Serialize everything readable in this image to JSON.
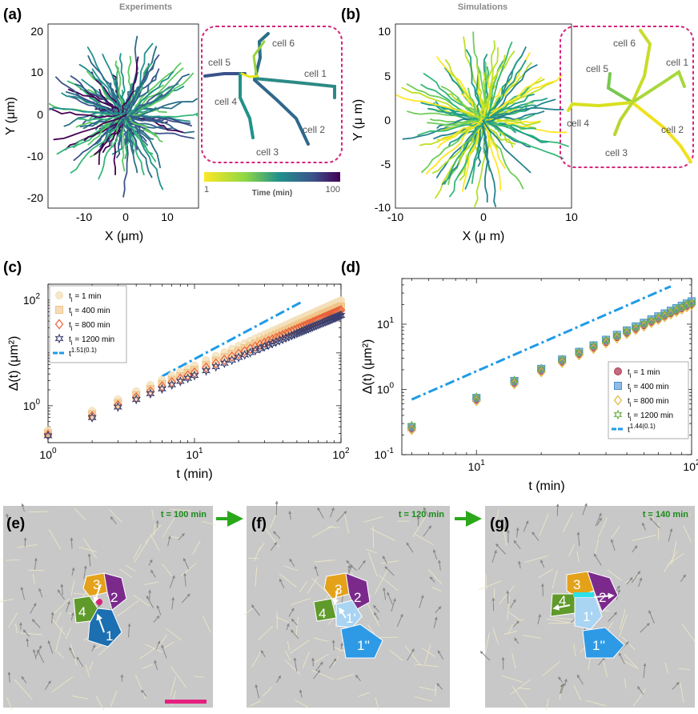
{
  "panels": {
    "a": {
      "label": "(a)",
      "header": "Experiments",
      "xlabel": "X (μm)",
      "ylabel": "Y (μm)",
      "xticks": [
        "-10",
        "0",
        "10"
      ],
      "yticks": [
        "20",
        "10",
        "0",
        "-10",
        "-20"
      ],
      "cells": [
        "cell 6",
        "cell 5",
        "cell 1",
        "cell 4",
        "cell 2",
        "cell 3"
      ],
      "colorbar": {
        "min": "1",
        "max": "100",
        "title": "Time (min)"
      }
    },
    "b": {
      "label": "(b)",
      "header": "Simulations",
      "xlabel": "X (μ m)",
      "ylabel": "Y (μ m)",
      "xticks": [
        "-10",
        "0",
        "10"
      ],
      "yticks": [
        "10",
        "5",
        "0",
        "-5",
        "-10"
      ],
      "cells": [
        "cell 6",
        "cell 5",
        "cell 1",
        "cell 4",
        "cell 2",
        "cell 3"
      ]
    },
    "c": {
      "label": "(c)"
    },
    "d": {
      "label": "(d)"
    },
    "e": {
      "label": "(e)",
      "time": "t = 100 min",
      "cells": [
        "3",
        "2",
        "4",
        "1"
      ]
    },
    "f": {
      "label": "(f)",
      "time": "t = 120 min",
      "cells": [
        "3",
        "2",
        "4",
        "1'",
        "1''"
      ]
    },
    "g": {
      "label": "(g)",
      "time": "t = 140 min",
      "cells": [
        "3",
        "4",
        "2",
        "1'",
        "1''"
      ]
    }
  },
  "colors": {
    "magenta": "#d6247a",
    "arrow_green": "#2aa81a",
    "fit_blue": "#1e9be8",
    "cell3": "#e3a21a",
    "cell2": "#7b2a8c",
    "cell4": "#5f9a2a",
    "cell1": "#1c6fb0",
    "cell1p": "#a9d4f2",
    "cell1pp": "#2e9ae6",
    "bg_gray": "#c8c8c8"
  },
  "chart_data": [
    {
      "id": "c",
      "type": "scatter",
      "scale": "log-log",
      "xlabel": "t (min)",
      "ylabel": "Δ(t) (μm²)",
      "xlim": [
        1,
        100
      ],
      "ylim": [
        0.2,
        200
      ],
      "xticks": [
        {
          "v": 1,
          "b": "10",
          "e": "0"
        },
        {
          "v": 10,
          "b": "10",
          "e": "1"
        },
        {
          "v": 100,
          "b": "10",
          "e": "2"
        }
      ],
      "yticks": [
        {
          "v": 1,
          "b": "10",
          "e": "0"
        },
        {
          "v": 100,
          "b": "10",
          "e": "2"
        }
      ],
      "series": [
        {
          "name": "t = 1 min",
          "sub": "i",
          "marker": "circle",
          "color": "#f3dfb8",
          "a": 0.34,
          "p": 1.23
        },
        {
          "name": "t = 400 min",
          "sub": "i",
          "marker": "square",
          "color": "#f0c487",
          "a": 0.3,
          "p": 1.2
        },
        {
          "name": "t = 800 min",
          "sub": "i",
          "marker": "diamond",
          "color": "#e8603a",
          "a": 0.28,
          "p": 1.18
        },
        {
          "name": "t = 1200 min",
          "sub": "i",
          "marker": "hexagram",
          "color": "#3a3f6e",
          "a": 0.27,
          "p": 1.14
        }
      ],
      "fit": {
        "label": "t",
        "exponent": "1.51(0.1)",
        "x": [
          6,
          55
        ],
        "y": [
          3.6,
          95
        ]
      }
    },
    {
      "id": "d",
      "type": "scatter",
      "scale": "log-log",
      "xlabel": "t (min)",
      "ylabel": "Δ(t) (μm²)",
      "xlim": [
        4.5,
        100
      ],
      "ylim": [
        0.1,
        50
      ],
      "xticks": [
        {
          "v": 10,
          "b": "10",
          "e": "1"
        },
        {
          "v": 100,
          "b": "10",
          "e": "2"
        }
      ],
      "yticks": [
        {
          "v": 0.1,
          "b": "10",
          "e": "-1"
        },
        {
          "v": 1,
          "b": "10",
          "e": "0"
        },
        {
          "v": 10,
          "b": "10",
          "e": "1"
        }
      ],
      "series": [
        {
          "name": "t = 1 min",
          "sub": "i",
          "marker": "circle",
          "color": "#b23a54",
          "a": 0.0235,
          "p": 1.47
        },
        {
          "name": "t = 400 min",
          "sub": "i",
          "marker": "square",
          "color": "#4a8fd2",
          "a": 0.0245,
          "p": 1.48
        },
        {
          "name": "t = 800 min",
          "sub": "i",
          "marker": "diamond",
          "color": "#e0b43a",
          "a": 0.0225,
          "p": 1.47
        },
        {
          "name": "t = 1200 min",
          "sub": "i",
          "marker": "hexagram",
          "color": "#6ab04c",
          "a": 0.027,
          "p": 1.45
        }
      ],
      "fit": {
        "label": "t",
        "exponent": "1.44(0.1)",
        "x": [
          5,
          80
        ],
        "y": [
          0.7,
          38
        ]
      }
    }
  ]
}
